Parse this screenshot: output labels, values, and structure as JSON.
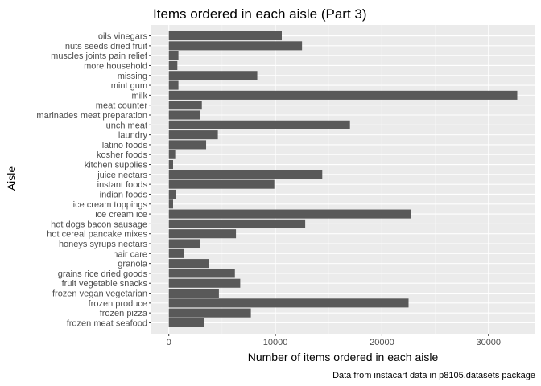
{
  "chart_data": {
    "type": "bar",
    "orientation": "horizontal",
    "title": "Items ordered in each aisle (Part 3)",
    "xlabel": "Number of items ordered in each aisle",
    "ylabel": "Aisle",
    "caption": "Data from instacart data in p8105.datasets package",
    "xlim": [
      -1640,
      34400
    ],
    "xticks": [
      0,
      10000,
      20000,
      30000
    ],
    "xtick_labels": [
      "0",
      "10000",
      "20000",
      "30000"
    ],
    "grid": true,
    "colors": {
      "bar": "#595959",
      "panel": "#ebebeb",
      "grid_major": "#ffffff",
      "grid_minor": "#f5f5f5"
    },
    "categories": [
      "oils vinegars",
      "nuts seeds dried fruit",
      "muscles joints pain relief",
      "more household",
      "missing",
      "mint gum",
      "milk",
      "meat counter",
      "marinades meat preparation",
      "lunch meat",
      "laundry",
      "latino foods",
      "kosher foods",
      "kitchen supplies",
      "juice nectars",
      "instant foods",
      "indian foods",
      "ice cream toppings",
      "ice cream ice",
      "hot dogs bacon sausage",
      "hot cereal pancake mixes",
      "honeys syrups nectars",
      "hair care",
      "granola",
      "grains rice dried goods",
      "fruit vegetable snacks",
      "frozen vegan vegetarian",
      "frozen produce",
      "frozen pizza",
      "frozen meat seafood"
    ],
    "values": [
      10600,
      12500,
      900,
      800,
      8300,
      900,
      32700,
      3100,
      2900,
      17000,
      4600,
      3500,
      600,
      400,
      14400,
      9900,
      700,
      400,
      22700,
      12800,
      6300,
      2900,
      1400,
      3800,
      6200,
      6700,
      4700,
      22500,
      7700,
      3300
    ]
  }
}
